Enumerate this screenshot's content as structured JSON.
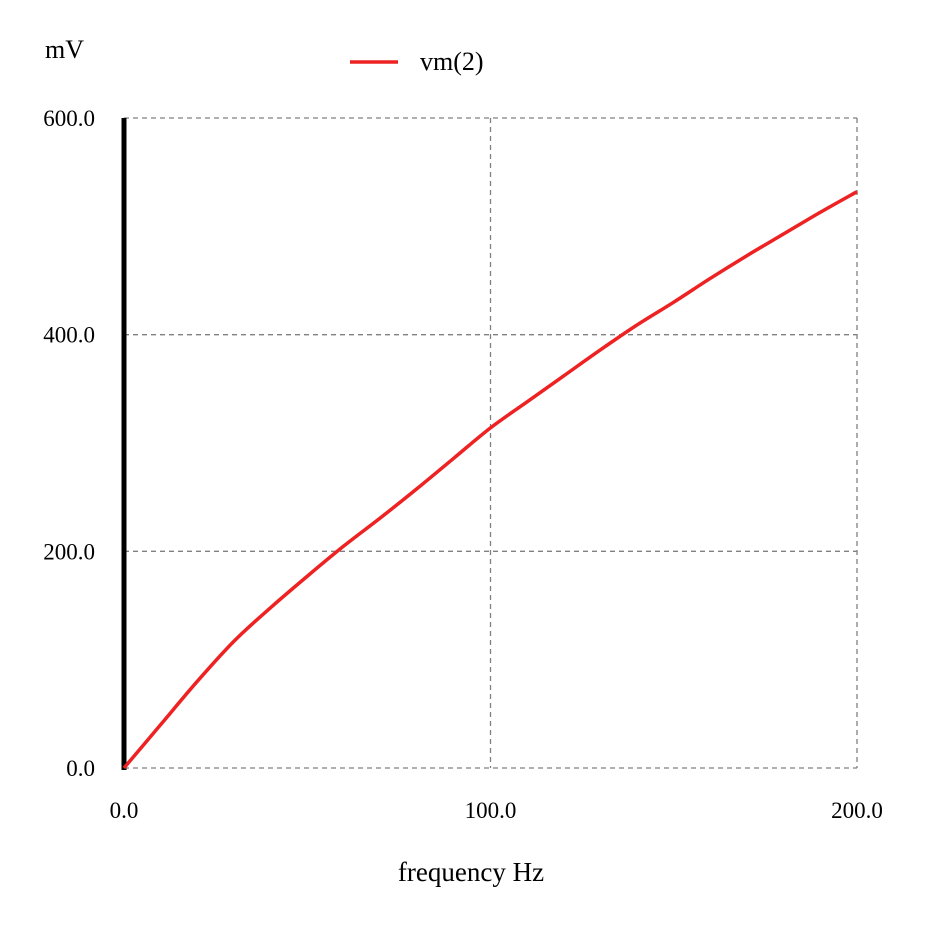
{
  "chart_data": {
    "type": "line",
    "title": "",
    "xlabel": "frequency Hz",
    "ylabel": "mV",
    "xlim": [
      0,
      200
    ],
    "ylim": [
      0,
      600
    ],
    "grid": true,
    "legend_position": "top-center",
    "x_ticks": [
      0,
      100,
      200
    ],
    "x_tick_labels": [
      "0.0",
      "100.0",
      "200.0"
    ],
    "y_ticks": [
      0,
      200,
      400,
      600
    ],
    "y_tick_labels": [
      "0.0",
      "200.0",
      "400.0",
      "600.0"
    ],
    "series": [
      {
        "name": "vm(2)",
        "color": "#ee2222",
        "x": [
          0,
          10,
          20,
          30,
          40,
          50,
          60,
          70,
          80,
          90,
          100,
          110,
          120,
          130,
          140,
          150,
          160,
          170,
          180,
          190,
          200
        ],
        "values": [
          0,
          40,
          80,
          117,
          148,
          177,
          205,
          231,
          258,
          286,
          314,
          338,
          362,
          386,
          409,
          430,
          452,
          473,
          493,
          513,
          532
        ]
      }
    ]
  }
}
